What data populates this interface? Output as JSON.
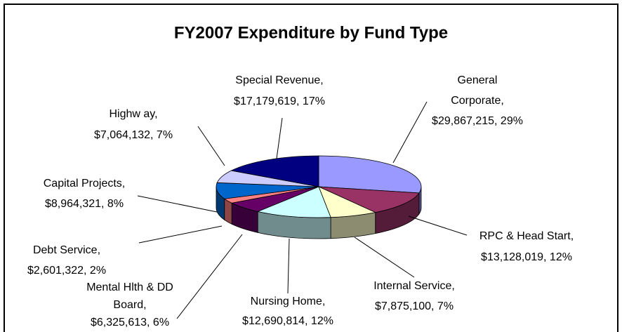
{
  "chart_data": {
    "type": "pie3d",
    "title": "FY2007 Expenditure by Fund Type",
    "categories": [
      "General Corporate",
      "RPC & Head Start",
      "Internal Service",
      "Nursing Home",
      "Mental Hlth & DD Board",
      "Debt Service",
      "Capital Projects",
      "Highway",
      "Special Revenue"
    ],
    "values": [
      29867215,
      13128019,
      7875100,
      12690814,
      6325613,
      2601322,
      8964321,
      7064132,
      17179619
    ],
    "labels": [
      [
        "General",
        "Corporate,",
        "$29,867,215, 29%"
      ],
      [
        "RPC & Head Start,",
        "$13,128,019, 12%"
      ],
      [
        "Internal Service,",
        "$7,875,100, 7%"
      ],
      [
        "Nursing Home,",
        "$12,690,814, 12%"
      ],
      [
        "Mental Hlth & DD",
        "Board,",
        "$6,325,613, 6%"
      ],
      [
        "Debt Service,",
        "$2,601,322, 2%"
      ],
      [
        "Capital Projects,",
        "$8,964,321, 8%"
      ],
      [
        "Highw ay,",
        "$7,064,132, 7%"
      ],
      [
        "Special Revenue,",
        "$17,179,619, 17%"
      ]
    ],
    "colors": [
      "#9999FF",
      "#993366",
      "#FFFFCC",
      "#CCFFFF",
      "#660066",
      "#FF8080",
      "#0066CC",
      "#CCCCFF",
      "#000080"
    ]
  }
}
